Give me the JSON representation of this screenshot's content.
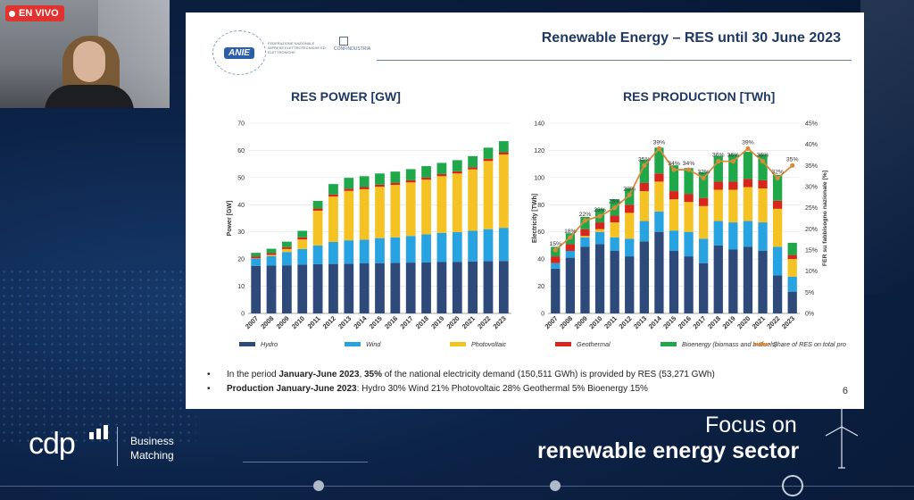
{
  "stream": {
    "live_label": "EN VIVO"
  },
  "slide": {
    "title": "Renewable Energy – RES until 30 June 2023",
    "page_number": "6",
    "logo_anie_label": "ANIE",
    "logo_anie_text": "FEDERAZIONE NAZIONALE IMPRESE ELETTROTECNICHE ED ELETTRONICHE",
    "logo_confindustria_label": "CONFINDUSTRIA",
    "bullet1_a": "In the period ",
    "bullet1_b": "January-June 2023",
    "bullet1_c": ", ",
    "bullet1_d": "35%",
    "bullet1_e": " of the national electricity demand (150,511 GWh) is provided by RES (53,271 GWh)",
    "bullet2_label": "Production January-June 2023",
    "bullet2_text": ":   Hydro 30%   Wind 21%   Photovoltaic 28%   Geothermal 5%   Bioenergy 15%"
  },
  "colors": {
    "hydro": "#2e4a7a",
    "wind": "#26a3e0",
    "pv": "#f5c224",
    "geo": "#d9261c",
    "bio": "#1fa84a",
    "share": "#d98a3a"
  },
  "legend": {
    "hydro": "Hydro",
    "wind": "Wind",
    "pv": "Photovoltaic",
    "geo": "Geothermal",
    "bio": "Bioenergy (biomass and biofuels)",
    "share": "Share of RES on total production[%]"
  },
  "chart_data": [
    {
      "type": "bar",
      "title": "RES POWER [GW]",
      "ylabel": "Power [GW]",
      "ylim": [
        0,
        70
      ],
      "yticks": [
        0,
        10,
        20,
        30,
        40,
        50,
        60,
        70
      ],
      "categories": [
        "2007",
        "2008",
        "2009",
        "2010",
        "2011",
        "2012",
        "2013",
        "2014",
        "2015",
        "2016",
        "2017",
        "2018",
        "2019",
        "2020",
        "2021",
        "2022",
        "2023"
      ],
      "series": [
        {
          "name": "Hydro",
          "color": "#2e4a7a",
          "values": [
            17.5,
            17.6,
            17.7,
            17.9,
            18.1,
            18.2,
            18.3,
            18.4,
            18.5,
            18.6,
            18.7,
            18.8,
            18.9,
            19.0,
            19.1,
            19.2,
            19.3
          ]
        },
        {
          "name": "Wind",
          "color": "#26a3e0",
          "values": [
            2.7,
            3.5,
            4.9,
            5.8,
            6.9,
            8.1,
            8.6,
            8.7,
            9.2,
            9.4,
            9.8,
            10.3,
            10.7,
            10.9,
            11.3,
            11.8,
            12.2
          ]
        },
        {
          "name": "Photovoltaic",
          "color": "#f5c224",
          "values": [
            0.1,
            0.4,
            1.1,
            3.5,
            12.8,
            16.7,
            18.2,
            18.6,
            18.9,
            19.3,
            19.7,
            20.1,
            20.9,
            21.6,
            22.6,
            25.1,
            27.0
          ]
        },
        {
          "name": "Geothermal",
          "color": "#d9261c",
          "values": [
            0.7,
            0.7,
            0.7,
            0.8,
            0.8,
            0.8,
            0.8,
            0.8,
            0.8,
            0.8,
            0.8,
            0.8,
            0.8,
            0.8,
            0.8,
            0.8,
            0.8
          ]
        },
        {
          "name": "Bioenergy (biomass and biofuels)",
          "color": "#1fa84a",
          "values": [
            1.3,
            1.6,
            2.0,
            2.4,
            2.8,
            3.8,
            4.0,
            4.0,
            4.1,
            4.1,
            4.1,
            4.2,
            4.1,
            4.1,
            4.1,
            4.1,
            4.1
          ]
        }
      ]
    },
    {
      "type": "bar",
      "title": "RES PRODUCTION [TWh]",
      "ylabel": "Electricity [TWh]",
      "y2label": "FER su fabbisogno nazionale [%]",
      "ylim": [
        0,
        140
      ],
      "yticks": [
        0,
        20,
        40,
        60,
        80,
        100,
        120,
        140
      ],
      "y2lim": [
        0,
        45
      ],
      "y2ticks": [
        "0%",
        "5%",
        "10%",
        "15%",
        "20%",
        "25%",
        "30%",
        "35%",
        "40%",
        "45%"
      ],
      "categories": [
        "2007",
        "2008",
        "2009",
        "2010",
        "2011",
        "2012",
        "2013",
        "2014",
        "2015",
        "2016",
        "2017",
        "2018",
        "2019",
        "2020",
        "2021",
        "2022",
        "2023"
      ],
      "series": [
        {
          "name": "Hydro",
          "color": "#2e4a7a",
          "values": [
            33,
            41,
            49,
            51,
            46,
            42,
            53,
            60,
            46,
            42,
            37,
            50,
            47,
            49,
            46,
            28,
            16
          ]
        },
        {
          "name": "Wind",
          "color": "#26a3e0",
          "values": [
            4,
            5,
            7,
            9,
            10,
            13,
            15,
            15,
            15,
            18,
            18,
            18,
            20,
            19,
            21,
            21,
            11
          ]
        },
        {
          "name": "Photovoltaic",
          "color": "#f5c224",
          "values": [
            0,
            0,
            1,
            2,
            11,
            19,
            22,
            22,
            23,
            22,
            24,
            23,
            24,
            25,
            25,
            28,
            13
          ]
        },
        {
          "name": "Geothermal",
          "color": "#d9261c",
          "values": [
            5,
            5,
            5,
            5,
            5,
            6,
            6,
            6,
            6,
            6,
            6,
            6,
            6,
            6,
            6,
            6,
            3
          ]
        },
        {
          "name": "Bioenergy (biomass and biofuels)",
          "color": "#1fa84a",
          "values": [
            7,
            8,
            9,
            10,
            12,
            12,
            17,
            19,
            19,
            19,
            19,
            19,
            20,
            20,
            19,
            19,
            9
          ]
        },
        {
          "name": "Share of RES on total production[%]",
          "color": "#d98a3a",
          "type": "line",
          "axis": "right",
          "values": [
            15,
            18,
            22,
            23,
            25,
            28,
            35,
            39,
            34,
            34,
            32,
            36,
            36,
            39,
            36,
            32,
            35
          ]
        }
      ],
      "data_labels": [
        "15%",
        "18%",
        "22%",
        "23%",
        "25%",
        "28%",
        "35%",
        "39%",
        "34%",
        "34%",
        "32%",
        "36%",
        "36%",
        "39%",
        "36%",
        "32%",
        "35%"
      ]
    }
  ],
  "branding": {
    "cdp": "cdp",
    "business": "Business",
    "matching": "Matching",
    "focus_on": "Focus on",
    "sector": "renewable energy sector"
  }
}
